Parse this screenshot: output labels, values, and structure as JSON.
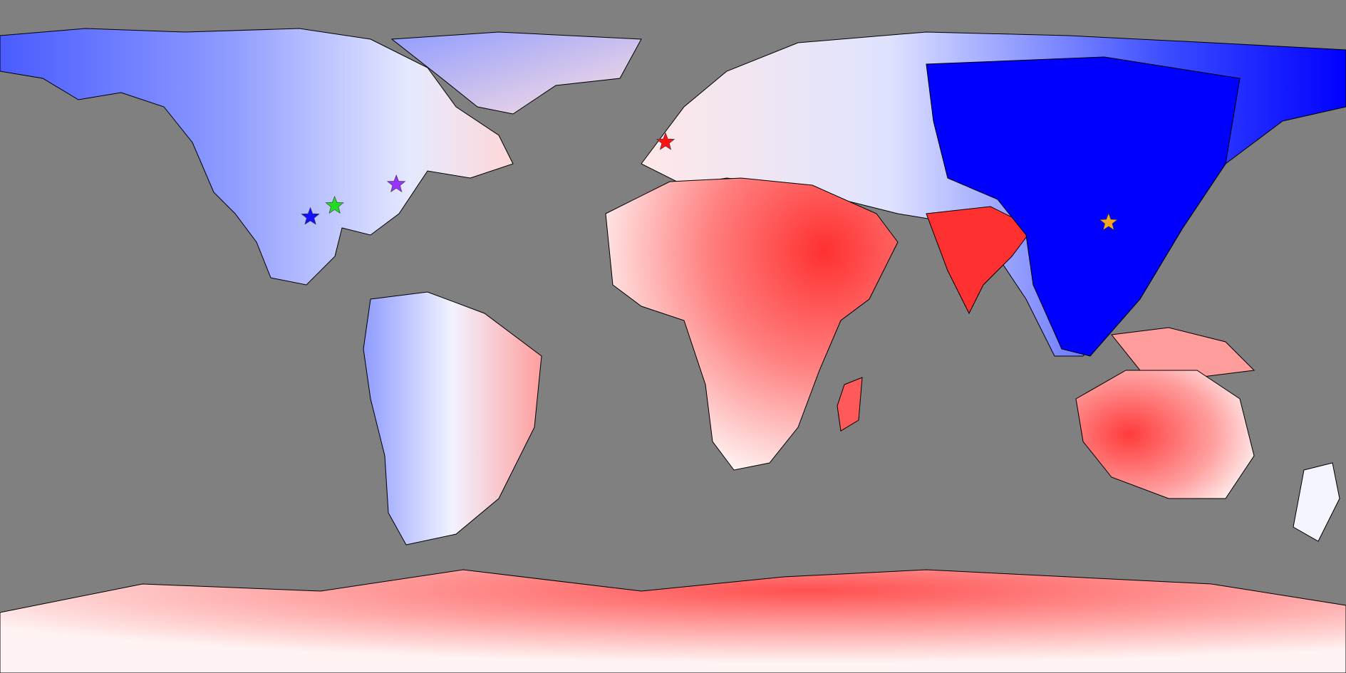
{
  "map": {
    "projection": "equirectangular",
    "background_color": "#808080",
    "coastline_color": "#000000",
    "diverging_scale": {
      "negative_color": "#0000ff",
      "neutral_color": "#ffffff",
      "positive_color": "#ff0000"
    },
    "markers": [
      {
        "name": "blue-star-marker",
        "color": "#1010ff",
        "lon": -97.0,
        "lat": 32.0
      },
      {
        "name": "green-star-marker",
        "color": "#22dd22",
        "lon": -90.5,
        "lat": 35.0
      },
      {
        "name": "purple-star-marker",
        "color": "#9933ff",
        "lon": -74.0,
        "lat": 40.7
      },
      {
        "name": "red-star-marker",
        "color": "#ff1111",
        "lon": -2.0,
        "lat": 52.0
      },
      {
        "name": "orange-star-marker",
        "color": "#f5a623",
        "lon": 116.5,
        "lat": 30.5
      }
    ]
  }
}
